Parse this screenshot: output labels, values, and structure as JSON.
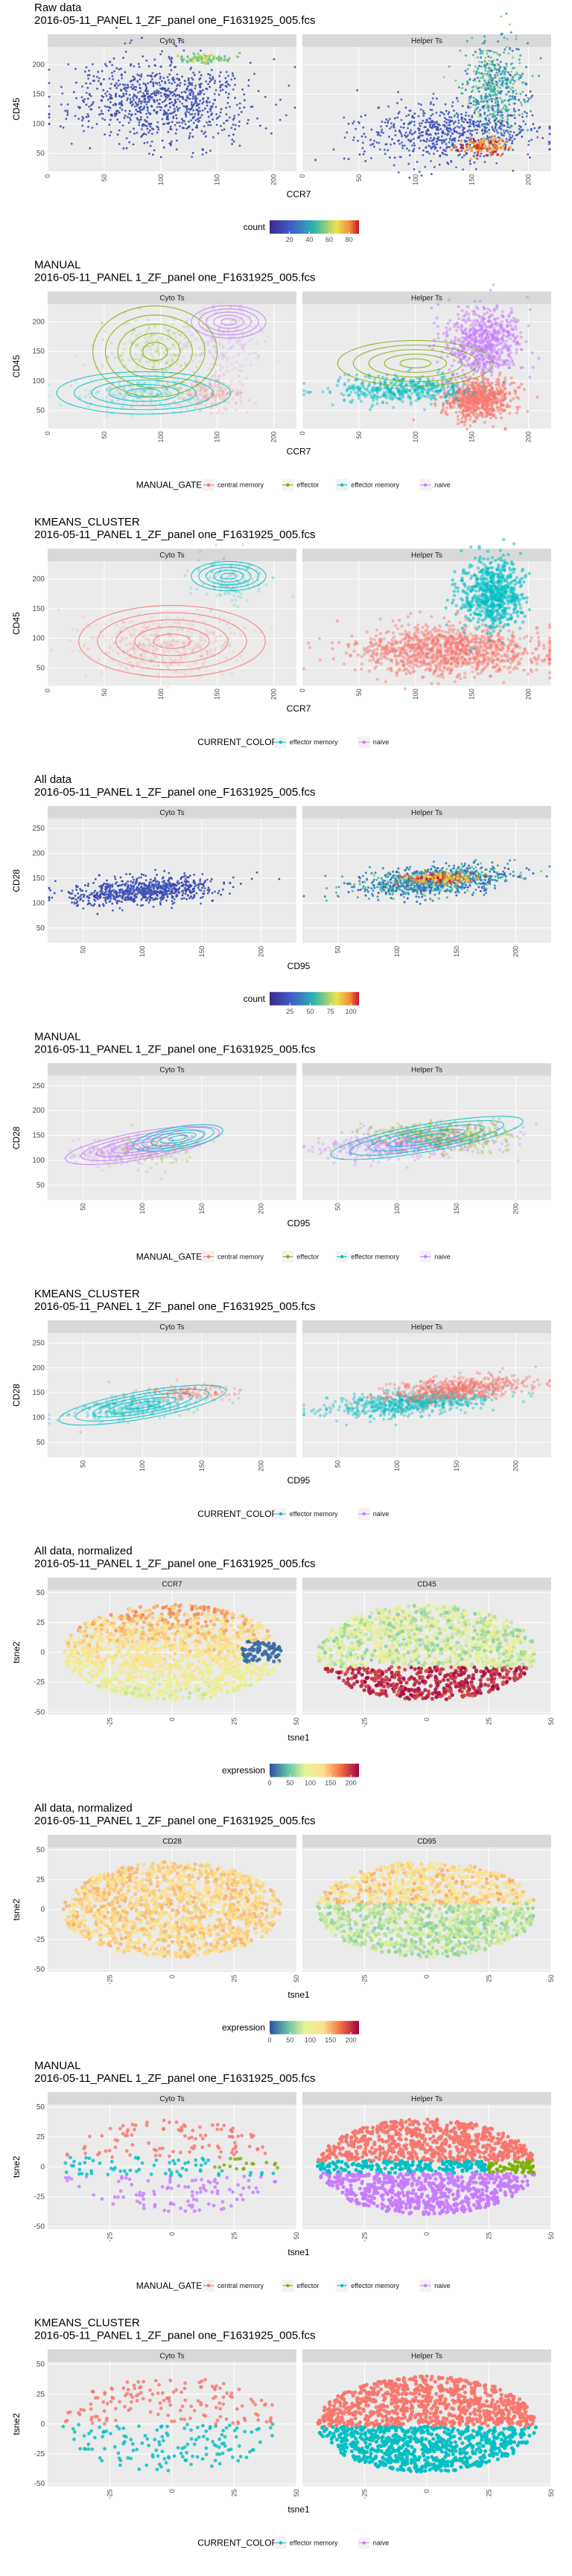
{
  "figure_caption": "",
  "sections": [
    {
      "title_line1": "Raw data",
      "title_line2": "2016-05-11_PANEL 1_ZF_panel one_F1631925_005.fcs",
      "panel_titles": [
        "Cyto Ts",
        "Helper Ts"
      ],
      "xlabel": "CCR7",
      "ylabel": "CD45",
      "x_ticks": [
        "0",
        "50",
        "100",
        "150",
        "200"
      ],
      "y_ticks": [
        "50",
        "100",
        "150",
        "200"
      ],
      "legend_title": "count",
      "legend_ticks": [
        "20",
        "40",
        "60",
        "80"
      ]
    },
    {
      "title_line1": "MANUAL",
      "title_line2": "2016-05-11_PANEL 1_ZF_panel one_F1631925_005.fcs",
      "panel_titles": [
        "Cyto Ts",
        "Helper Ts"
      ],
      "xlabel": "CCR7",
      "ylabel": "CD45",
      "x_ticks": [
        "0",
        "50",
        "100",
        "150",
        "200"
      ],
      "y_ticks": [
        "50",
        "100",
        "150",
        "200"
      ],
      "legend_title": "MANUAL_GATE",
      "legend_entries": [
        "central memory",
        "effector",
        "effector memory",
        "naive"
      ]
    },
    {
      "title_line1": "KMEANS_CLUSTER",
      "title_line2": "2016-05-11_PANEL 1_ZF_panel one_F1631925_005.fcs",
      "panel_titles": [
        "Cyto Ts",
        "Helper Ts"
      ],
      "xlabel": "CCR7",
      "ylabel": "CD45",
      "x_ticks": [
        "0",
        "50",
        "100",
        "150",
        "200"
      ],
      "y_ticks": [
        "50",
        "100",
        "150",
        "200"
      ],
      "legend_title": "CURRENT_COLOR",
      "legend_entries": [
        "effector memory",
        "naive"
      ]
    },
    {
      "title_line1": "All data",
      "title_line2": "2016-05-11_PANEL 1_ZF_panel one_F1631925_005.fcs",
      "panel_titles": [
        "Cyto Ts",
        "Helper Ts"
      ],
      "xlabel": "CD95",
      "ylabel": "CD28",
      "x_ticks": [
        "50",
        "100",
        "150",
        "200"
      ],
      "y_ticks": [
        "50",
        "100",
        "150",
        "200",
        "250"
      ],
      "legend_title": "count",
      "legend_ticks": [
        "25",
        "50",
        "75",
        "100"
      ]
    },
    {
      "title_line1": "MANUAL",
      "title_line2": "2016-05-11_PANEL 1_ZF_panel one_F1631925_005.fcs",
      "panel_titles": [
        "Cyto Ts",
        "Helper Ts"
      ],
      "xlabel": "CD95",
      "ylabel": "CD28",
      "x_ticks": [
        "50",
        "100",
        "150",
        "200"
      ],
      "y_ticks": [
        "50",
        "100",
        "150",
        "200",
        "250"
      ],
      "legend_title": "MANUAL_GATE",
      "legend_entries": [
        "central memory",
        "effector",
        "effector memory",
        "naive"
      ]
    },
    {
      "title_line1": "KMEANS_CLUSTER",
      "title_line2": "2016-05-11_PANEL 1_ZF_panel one_F1631925_005.fcs",
      "panel_titles": [
        "Cyto Ts",
        "Helper Ts"
      ],
      "xlabel": "CD95",
      "ylabel": "CD28",
      "x_ticks": [
        "50",
        "100",
        "150",
        "200"
      ],
      "y_ticks": [
        "50",
        "100",
        "150",
        "200",
        "250"
      ],
      "legend_title": "CURRENT_COLOR",
      "legend_entries": [
        "effector memory",
        "naive"
      ]
    },
    {
      "title_line1": "All data, normalized",
      "title_line2": "2016-05-11_PANEL 1_ZF_panel one_F1631925_005.fcs",
      "panel_titles": [
        "CCR7",
        "CD45"
      ],
      "xlabel": "tsne1",
      "ylabel": "tsne2",
      "x_ticks": [
        "-25",
        "0",
        "25",
        "50"
      ],
      "y_ticks": [
        "-50",
        "-25",
        "0",
        "25",
        "50"
      ],
      "legend_title": "expression",
      "legend_ticks": [
        "0",
        "50",
        "100",
        "150",
        "200"
      ]
    },
    {
      "title_line1": "All data, normalized",
      "title_line2": "2016-05-11_PANEL 1_ZF_panel one_F1631925_005.fcs",
      "panel_titles": [
        "CD28",
        "CD95"
      ],
      "xlabel": "tsne1",
      "ylabel": "tsne2",
      "x_ticks": [
        "-25",
        "0",
        "25",
        "50"
      ],
      "y_ticks": [
        "-50",
        "-25",
        "0",
        "25",
        "50"
      ],
      "legend_title": "expression",
      "legend_ticks": [
        "0",
        "50",
        "100",
        "150",
        "200"
      ]
    },
    {
      "title_line1": "MANUAL",
      "title_line2": "2016-05-11_PANEL 1_ZF_panel one_F1631925_005.fcs",
      "panel_titles": [
        "Cyto Ts",
        "Helper Ts"
      ],
      "xlabel": "tsne1",
      "ylabel": "tsne2",
      "x_ticks": [
        "-25",
        "0",
        "25",
        "50"
      ],
      "y_ticks": [
        "-50",
        "-25",
        "0",
        "25",
        "50"
      ],
      "legend_title": "MANUAL_GATE",
      "legend_entries": [
        "central memory",
        "effector",
        "effector memory",
        "naive"
      ]
    },
    {
      "title_line1": "KMEANS_CLUSTER",
      "title_line2": "2016-05-11_PANEL 1_ZF_panel one_F1631925_005.fcs",
      "panel_titles": [
        "Cyto Ts",
        "Helper Ts"
      ],
      "xlabel": "tsne1",
      "ylabel": "tsne2",
      "x_ticks": [
        "-25",
        "0",
        "25",
        "50"
      ],
      "y_ticks": [
        "-50",
        "-25",
        "0",
        "25",
        "50"
      ],
      "legend_title": "CURRENT_COLOR",
      "legend_entries": [
        "effector memory",
        "naive"
      ]
    }
  ],
  "colors": {
    "central_memory": "#F8766D",
    "effector": "#7CAE00",
    "effector_memory": "#00BFC4",
    "naive": "#C77CFF",
    "panel_bg": "#EBEBEB",
    "strip_bg": "#D9D9D9",
    "grid": "#FFFFFF"
  },
  "chart_data": [
    {
      "type": "heatmap",
      "panels": [
        "Cyto Ts",
        "Helper Ts"
      ],
      "x_label": "CCR7",
      "y_label": "CD45",
      "xlim": [
        0,
        220
      ],
      "ylim": [
        20,
        230
      ],
      "fill": "count",
      "fill_range": [
        0,
        90
      ],
      "hotspots": {
        "Cyto Ts": [
          {
            "x": 140,
            "y": 210,
            "level": "high"
          }
        ],
        "Helper Ts": [
          {
            "x": 160,
            "y": 60,
            "level": "high"
          },
          {
            "x": 170,
            "y": 180,
            "level": "medium"
          }
        ]
      }
    },
    {
      "type": "scatter",
      "panels": [
        "Cyto Ts",
        "Helper Ts"
      ],
      "x_label": "CCR7",
      "y_label": "CD45",
      "xlim": [
        0,
        220
      ],
      "ylim": [
        20,
        230
      ],
      "series": [
        {
          "name": "central memory",
          "region": {
            "x": [
              120,
              175
            ],
            "y": [
              50,
              110
            ]
          }
        },
        {
          "name": "effector",
          "region": {
            "x": [
              60,
              120
            ],
            "y": [
              110,
              200
            ]
          }
        },
        {
          "name": "effector memory",
          "region": {
            "x": [
              40,
              120
            ],
            "y": [
              50,
              110
            ]
          }
        },
        {
          "name": "naive",
          "region": {
            "x": [
              120,
              190
            ],
            "y": [
              110,
              220
            ]
          }
        }
      ]
    },
    {
      "type": "scatter",
      "panels": [
        "Cyto Ts",
        "Helper Ts"
      ],
      "x_label": "CCR7",
      "y_label": "CD45",
      "xlim": [
        0,
        220
      ],
      "ylim": [
        20,
        230
      ],
      "series": [
        {
          "name": "effector memory",
          "center": {
            "x": 110,
            "y": 80
          }
        },
        {
          "name": "naive",
          "center": {
            "x": 160,
            "y": 200
          }
        }
      ]
    },
    {
      "type": "heatmap",
      "panels": [
        "Cyto Ts",
        "Helper Ts"
      ],
      "x_label": "CD95",
      "y_label": "CD28",
      "xlim": [
        20,
        230
      ],
      "ylim": [
        20,
        270
      ],
      "fill": "count",
      "fill_range": [
        0,
        110
      ],
      "hotspots": {
        "Cyto Ts": [
          {
            "x": 100,
            "y": 125,
            "level": "low"
          }
        ],
        "Helper Ts": [
          {
            "x": 130,
            "y": 150,
            "level": "high"
          }
        ]
      }
    },
    {
      "type": "scatter",
      "panels": [
        "Cyto Ts",
        "Helper Ts"
      ],
      "x_label": "CD95",
      "y_label": "CD28",
      "xlim": [
        20,
        230
      ],
      "ylim": [
        20,
        270
      ],
      "series": [
        {
          "name": "central memory",
          "center": {
            "x": 120,
            "y": 145
          }
        },
        {
          "name": "effector",
          "center": {
            "x": 110,
            "y": 130
          }
        },
        {
          "name": "effector memory",
          "center": {
            "x": 130,
            "y": 150
          }
        },
        {
          "name": "naive",
          "center": {
            "x": 85,
            "y": 125
          }
        }
      ]
    },
    {
      "type": "scatter",
      "panels": [
        "Cyto Ts",
        "Helper Ts"
      ],
      "x_label": "CD95",
      "y_label": "CD28",
      "xlim": [
        20,
        230
      ],
      "ylim": [
        20,
        270
      ],
      "series": [
        {
          "name": "effector memory",
          "center": {
            "x": 130,
            "y": 150
          }
        },
        {
          "name": "naive",
          "center": {
            "x": 90,
            "y": 125
          }
        }
      ]
    },
    {
      "type": "scatter",
      "panels": [
        "CCR7",
        "CD45"
      ],
      "x_label": "tsne1",
      "y_label": "tsne2",
      "xlim": [
        -50,
        50
      ],
      "ylim": [
        -52,
        52
      ],
      "fill": "expression",
      "fill_range": [
        0,
        220
      ]
    },
    {
      "type": "scatter",
      "panels": [
        "CD28",
        "CD95"
      ],
      "x_label": "tsne1",
      "y_label": "tsne2",
      "xlim": [
        -50,
        50
      ],
      "ylim": [
        -52,
        52
      ],
      "fill": "expression",
      "fill_range": [
        0,
        220
      ]
    },
    {
      "type": "scatter",
      "panels": [
        "Cyto Ts",
        "Helper Ts"
      ],
      "x_label": "tsne1",
      "y_label": "tsne2",
      "xlim": [
        -50,
        50
      ],
      "ylim": [
        -52,
        52
      ],
      "series": [
        {
          "name": "central memory",
          "region": "upper half"
        },
        {
          "name": "effector",
          "region": "right, upper middle"
        },
        {
          "name": "effector memory",
          "region": "center band"
        },
        {
          "name": "naive",
          "region": "lower half"
        }
      ]
    },
    {
      "type": "scatter",
      "panels": [
        "Cyto Ts",
        "Helper Ts"
      ],
      "x_label": "tsne1",
      "y_label": "tsne2",
      "xlim": [
        -50,
        50
      ],
      "ylim": [
        -52,
        52
      ],
      "series": [
        {
          "name": "effector memory",
          "region": "upper half"
        },
        {
          "name": "naive",
          "region": "lower half"
        }
      ]
    }
  ]
}
